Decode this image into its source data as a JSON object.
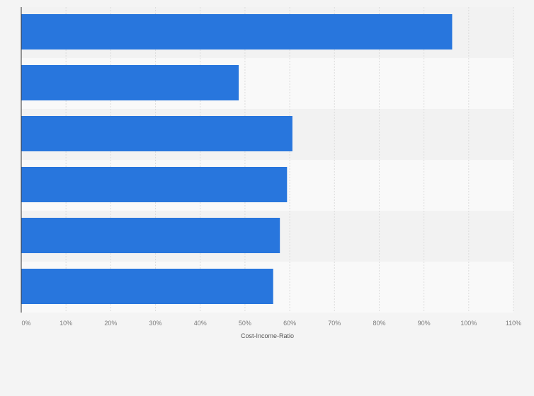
{
  "chart_data": {
    "type": "bar",
    "orientation": "horizontal",
    "categories": [
      "",
      "",
      "",
      "",
      "",
      ""
    ],
    "values": [
      96.3,
      48.6,
      60.6,
      59.4,
      57.8,
      56.3
    ],
    "xlabel": "Cost-Income-Ratio",
    "ylabel": "",
    "xlim": [
      0,
      110
    ],
    "xticks": [
      0,
      10,
      20,
      30,
      40,
      50,
      60,
      70,
      80,
      90,
      100,
      110
    ],
    "tick_labels": [
      "0%",
      "10%",
      "20%",
      "30%",
      "40%",
      "50%",
      "60%",
      "70%",
      "80%",
      "90%",
      "100%",
      "110%"
    ],
    "grid": true,
    "colors": {
      "bar": "#2876dd",
      "band_light": "#f9f9f9",
      "band_dark": "#f2f2f2",
      "grid": "#dcdcdc",
      "axis": "#333333"
    }
  }
}
